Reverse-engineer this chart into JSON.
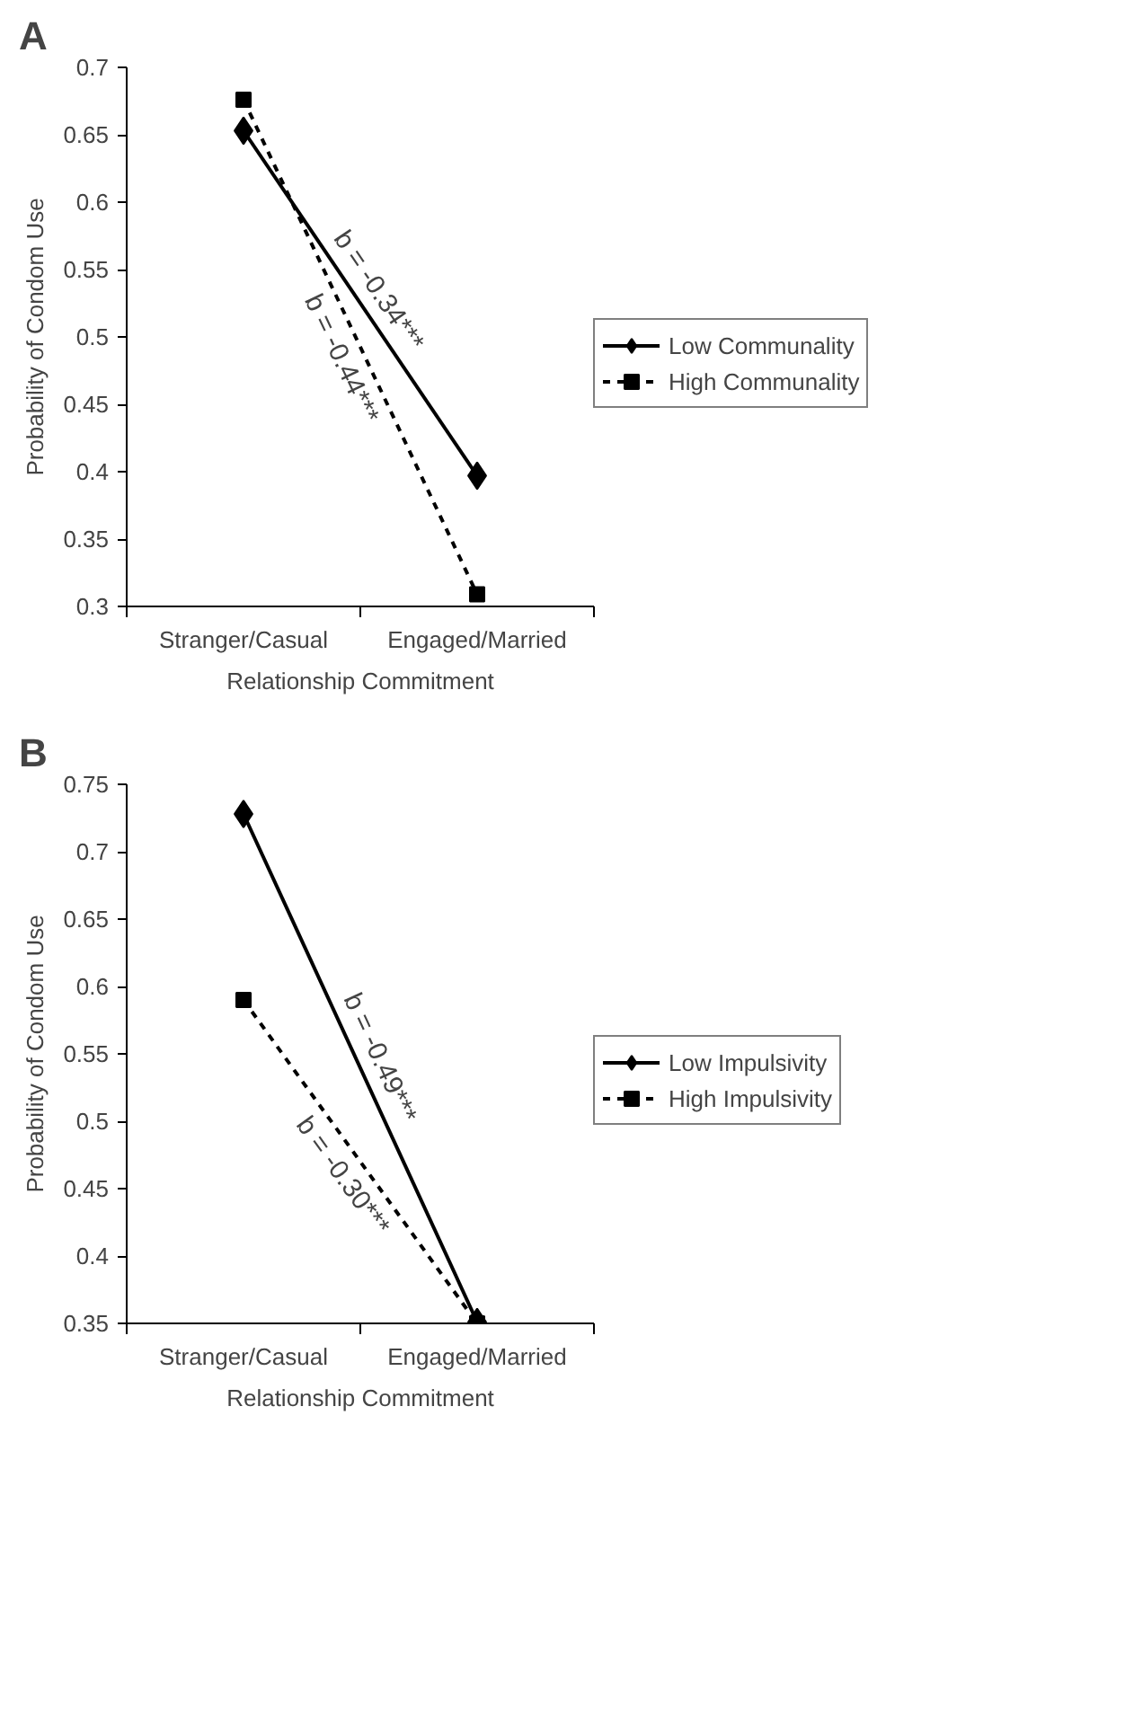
{
  "chart_data": [
    {
      "type": "line",
      "title": "A",
      "xlabel": "Relationship Commitment",
      "ylabel": "Probability of Condom Use",
      "categories": [
        "Stranger/Casual",
        "Engaged/Married"
      ],
      "ylim": [
        0.3,
        0.7
      ],
      "yticks": [
        0.3,
        0.35,
        0.4,
        0.45,
        0.5,
        0.55,
        0.6,
        0.65,
        0.7
      ],
      "grid": false,
      "legend": "right",
      "series": [
        {
          "name": "Low Communality",
          "color": "#000000",
          "values": [
            0.653,
            0.397
          ],
          "marker": "diamond",
          "line_style": "solid"
        },
        {
          "name": "High Communality",
          "color": "#000000",
          "values": [
            0.676,
            0.309
          ],
          "marker": "square",
          "line_style": "dotted"
        }
      ],
      "annotations": [
        "b = -0.34***",
        "b = -0.44***"
      ]
    },
    {
      "type": "line",
      "title": "B",
      "xlabel": "Relationship Commitment",
      "ylabel": "Probability of Condom Use",
      "categories": [
        "Stranger/Casual",
        "Engaged/Married"
      ],
      "ylim": [
        0.35,
        0.75
      ],
      "yticks": [
        0.35,
        0.4,
        0.45,
        0.5,
        0.55,
        0.6,
        0.65,
        0.7,
        0.75
      ],
      "grid": false,
      "legend": "right",
      "series": [
        {
          "name": "Low Impulsivity",
          "color": "#000000",
          "values": [
            0.728,
            0.351
          ],
          "marker": "diamond",
          "line_style": "solid"
        },
        {
          "name": "High Impulsivity",
          "color": "#000000",
          "values": [
            0.59,
            0.35
          ],
          "marker": "square",
          "line_style": "dotted"
        }
      ],
      "annotations": [
        "b = -0.49***",
        "b = -0.30***"
      ]
    }
  ]
}
